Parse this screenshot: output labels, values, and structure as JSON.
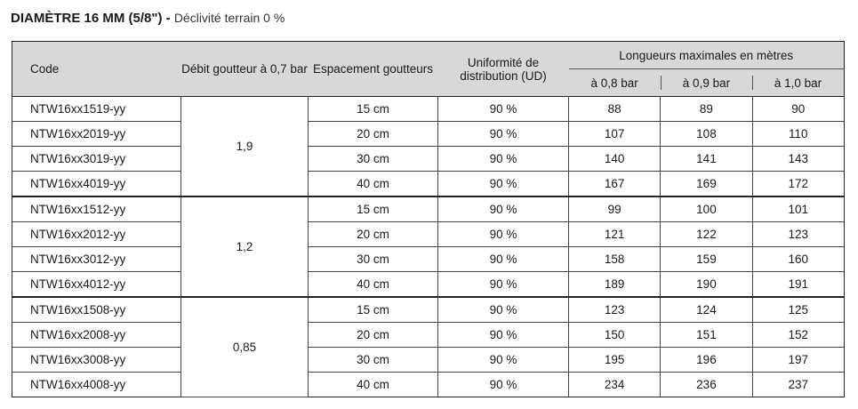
{
  "title": {
    "bold": "DIAMÈTRE 16 MM (5/8\") -",
    "sub": "Déclivité terrain 0 %"
  },
  "headers": {
    "code": "Code",
    "debit": "Débit goutteur à 0,7 bar",
    "espacement": "Espacement goutteurs",
    "uniformite": "Uniformité de distribution (UD)",
    "longueurs": "Longueurs maximales en mètres",
    "pressures": [
      "à 0,8 bar",
      "à 0,9 bar",
      "à 1,0 bar"
    ]
  },
  "groups": [
    {
      "debit": "1,9",
      "rows": [
        {
          "code": "NTW16xx1519-yy",
          "espacement": "15 cm",
          "ud": "90 %",
          "l08": "88",
          "l09": "89",
          "l10": "90"
        },
        {
          "code": "NTW16xx2019-yy",
          "espacement": "20 cm",
          "ud": "90 %",
          "l08": "107",
          "l09": "108",
          "l10": "110"
        },
        {
          "code": "NTW16xx3019-yy",
          "espacement": "30 cm",
          "ud": "90 %",
          "l08": "140",
          "l09": "141",
          "l10": "143"
        },
        {
          "code": "NTW16xx4019-yy",
          "espacement": "40 cm",
          "ud": "90 %",
          "l08": "167",
          "l09": "169",
          "l10": "172"
        }
      ]
    },
    {
      "debit": "1,2",
      "rows": [
        {
          "code": "NTW16xx1512-yy",
          "espacement": "15 cm",
          "ud": "90 %",
          "l08": "99",
          "l09": "100",
          "l10": "101"
        },
        {
          "code": "NTW16xx2012-yy",
          "espacement": "20 cm",
          "ud": "90 %",
          "l08": "121",
          "l09": "122",
          "l10": "123"
        },
        {
          "code": "NTW16xx3012-yy",
          "espacement": "30 cm",
          "ud": "90 %",
          "l08": "158",
          "l09": "159",
          "l10": "160"
        },
        {
          "code": "NTW16xx4012-yy",
          "espacement": "40 cm",
          "ud": "90 %",
          "l08": "189",
          "l09": "190",
          "l10": "191"
        }
      ]
    },
    {
      "debit": "0,85",
      "rows": [
        {
          "code": "NTW16xx1508-yy",
          "espacement": "15 cm",
          "ud": "90 %",
          "l08": "123",
          "l09": "124",
          "l10": "125"
        },
        {
          "code": "NTW16xx2008-yy",
          "espacement": "20 cm",
          "ud": "90 %",
          "l08": "150",
          "l09": "151",
          "l10": "152"
        },
        {
          "code": "NTW16xx3008-yy",
          "espacement": "30 cm",
          "ud": "90 %",
          "l08": "195",
          "l09": "196",
          "l10": "197"
        },
        {
          "code": "NTW16xx4008-yy",
          "espacement": "40 cm",
          "ud": "90 %",
          "l08": "234",
          "l09": "236",
          "l10": "237"
        }
      ]
    }
  ]
}
